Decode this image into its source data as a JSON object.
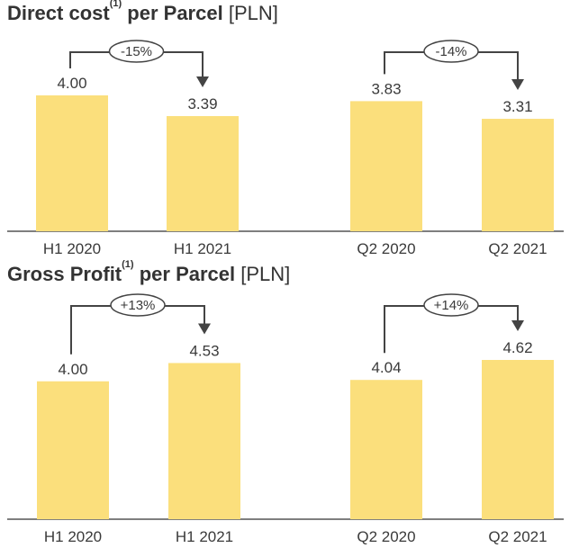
{
  "chart_data": [
    {
      "type": "bar",
      "title": "Direct cost",
      "title_superscript": "(1)",
      "title_suffix": "per Parcel",
      "unit": "[PLN]",
      "categories": [
        "H1 2020",
        "H1 2021",
        "Q2 2020",
        "Q2 2021"
      ],
      "values": [
        4.0,
        3.39,
        3.83,
        3.31
      ],
      "value_labels": [
        "4.00",
        "3.39",
        "3.83",
        "3.31"
      ],
      "ylim": [
        0,
        4.0
      ],
      "bar_color": "#FBDF7C",
      "changes": [
        {
          "from": 0,
          "to": 1,
          "label": "-15%"
        },
        {
          "from": 2,
          "to": 3,
          "label": "-14%"
        }
      ]
    },
    {
      "type": "bar",
      "title": "Gross Profit",
      "title_superscript": "(1)",
      "title_suffix": "per Parcel",
      "unit": "[PLN]",
      "categories": [
        "H1 2020",
        "H1 2021",
        "Q2 2020",
        "Q2 2021"
      ],
      "values": [
        4.0,
        4.53,
        4.04,
        4.62
      ],
      "value_labels": [
        "4.00",
        "4.53",
        "4.04",
        "4.62"
      ],
      "ylim": [
        0,
        4.62
      ],
      "bar_color": "#FBDF7C",
      "changes": [
        {
          "from": 0,
          "to": 1,
          "label": "+13%"
        },
        {
          "from": 2,
          "to": 3,
          "label": "+14%"
        }
      ]
    }
  ]
}
